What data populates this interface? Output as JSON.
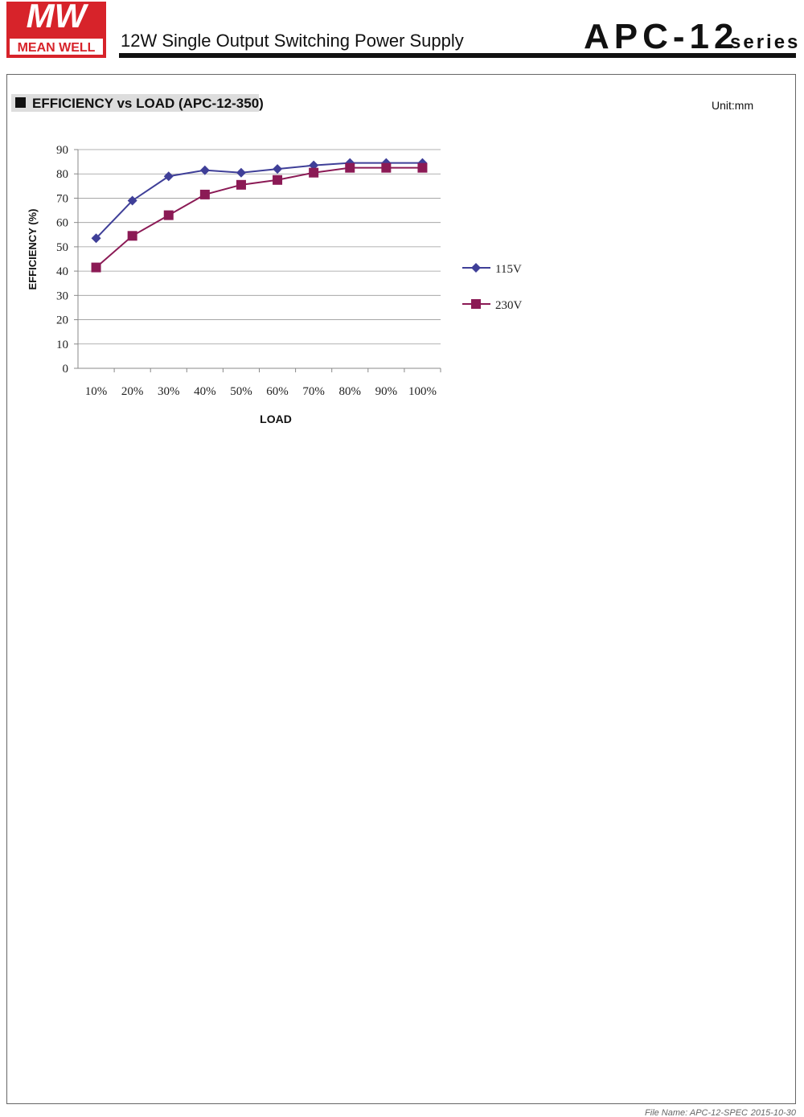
{
  "header": {
    "logo": "MW",
    "brand": "MEAN WELL",
    "title": "12W Single Output Switching Power Supply",
    "model": "APC-12",
    "series": "series"
  },
  "section": {
    "title": "EFFICIENCY vs LOAD (APC-12-350)",
    "unit": "Unit:mm"
  },
  "footer": {
    "file_name": "File Name: APC-12-SPEC",
    "date": "2015-10-30"
  },
  "chart_data": {
    "type": "line",
    "x_label": "LOAD",
    "y_label": "EFFICIENCY (%)",
    "categories": [
      "10%",
      "20%",
      "30%",
      "40%",
      "50%",
      "60%",
      "70%",
      "80%",
      "90%",
      "100%"
    ],
    "series": [
      {
        "name": "115V",
        "color": "#3f3f98",
        "marker": "diamond",
        "values": [
          53.5,
          69,
          79,
          81.5,
          80.5,
          82,
          83.5,
          84.5,
          84.5,
          84.5
        ]
      },
      {
        "name": "230V",
        "color": "#8b1a55",
        "marker": "square",
        "values": [
          41.5,
          54.5,
          63,
          71.5,
          75.5,
          77.5,
          80.5,
          82.5,
          82.5,
          82.5
        ]
      }
    ],
    "ylim": [
      0,
      90
    ],
    "yticks": [
      0,
      10,
      20,
      30,
      40,
      50,
      60,
      70,
      80,
      90
    ],
    "grid": true
  }
}
